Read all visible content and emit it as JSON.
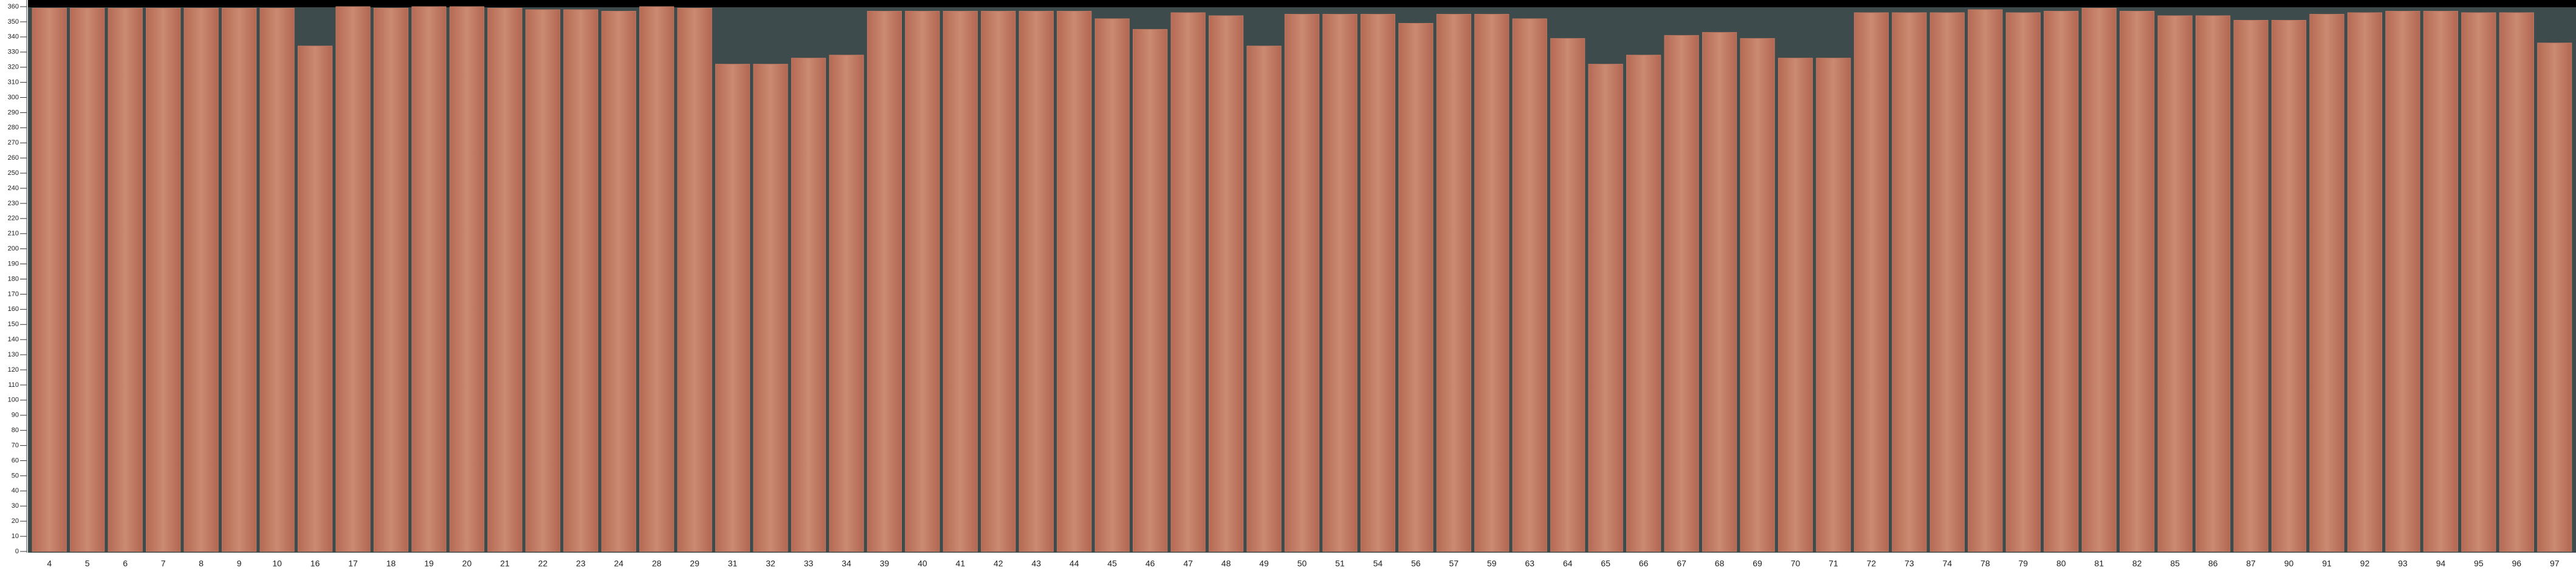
{
  "chart_data": {
    "type": "bar",
    "categories": [
      "4",
      "5",
      "6",
      "7",
      "8",
      "9",
      "10",
      "16",
      "17",
      "18",
      "19",
      "20",
      "21",
      "22",
      "23",
      "24",
      "28",
      "29",
      "31",
      "32",
      "33",
      "34",
      "39",
      "40",
      "41",
      "42",
      "43",
      "44",
      "45",
      "46",
      "47",
      "48",
      "49",
      "50",
      "51",
      "54",
      "56",
      "57",
      "59",
      "63",
      "64",
      "65",
      "66",
      "67",
      "68",
      "69",
      "70",
      "71",
      "72",
      "73",
      "74",
      "78",
      "79",
      "80",
      "81",
      "82",
      "85",
      "86",
      "87",
      "90",
      "91",
      "92",
      "93",
      "94",
      "95",
      "96",
      "97"
    ],
    "values": [
      359,
      359,
      359,
      359,
      359,
      359,
      359,
      334,
      360,
      359,
      360,
      360,
      359,
      358,
      358,
      357,
      360,
      359,
      322,
      322,
      326,
      328,
      357,
      357,
      357,
      357,
      357,
      357,
      352,
      345,
      356,
      354,
      334,
      355,
      355,
      355,
      349,
      355,
      355,
      352,
      339,
      322,
      328,
      341,
      343,
      339,
      326,
      326,
      356,
      356,
      356,
      358,
      356,
      357,
      359,
      357,
      354,
      354,
      351,
      351,
      355,
      356,
      357,
      357,
      356,
      356,
      336
    ],
    "color": "#c07a62",
    "ylim": [
      0,
      360
    ],
    "yticks": [
      0,
      10,
      20,
      30,
      40,
      50,
      60,
      70,
      80,
      90,
      100,
      110,
      120,
      130,
      140,
      150,
      160,
      170,
      180,
      190,
      200,
      210,
      220,
      230,
      240,
      250,
      260,
      270,
      280,
      290,
      300,
      310,
      320,
      330,
      340,
      350,
      360
    ]
  }
}
